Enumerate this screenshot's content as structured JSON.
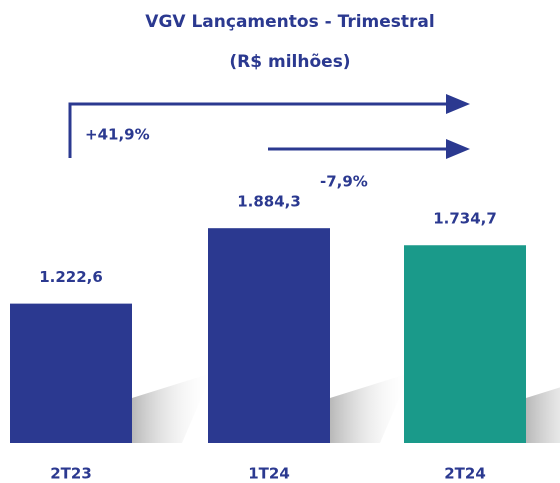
{
  "chart_data": {
    "type": "bar",
    "title": "VGV Lançamentos - Trimestral",
    "subtitle": "(R$ milhões)",
    "categories": [
      "2T23",
      "1T24",
      "2T24"
    ],
    "values": [
      1222.6,
      1884.3,
      1734.7
    ],
    "value_labels": [
      "1.222,6",
      "1.884,3",
      "1.734,7"
    ],
    "colors": [
      "#2b3990",
      "#2b3990",
      "#1a9a8a"
    ],
    "annotations": [
      "+41,9%",
      "-7,9%"
    ]
  }
}
